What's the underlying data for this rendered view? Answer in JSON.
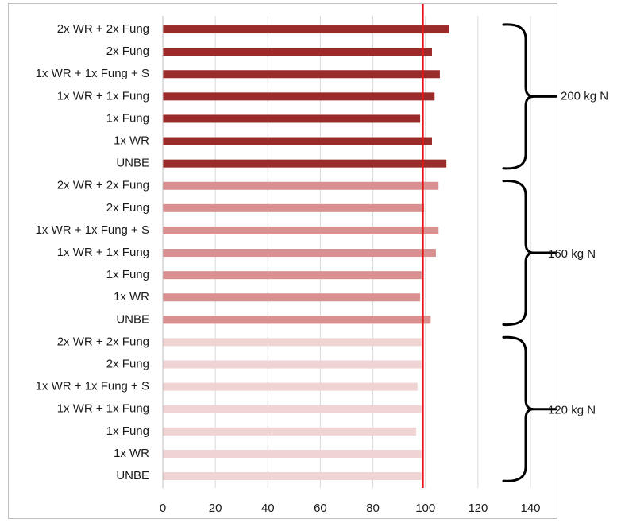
{
  "chart_data": {
    "type": "bar",
    "orientation": "horizontal",
    "xlim": [
      0,
      140
    ],
    "x_ticks": [
      0,
      20,
      40,
      60,
      80,
      100,
      120,
      140
    ],
    "grid": "vertical gridlines",
    "reference_line": {
      "value": 99,
      "color": "#e8141b"
    },
    "groups": [
      {
        "label": "200 kg N",
        "color": "#9b2b2b",
        "bars": [
          {
            "category": "2x WR + 2x Fung",
            "value": 109
          },
          {
            "category": "2x Fung",
            "value": 102.5
          },
          {
            "category": "1x WR + 1x Fung + S",
            "value": 105.5
          },
          {
            "category": "1x WR + 1x Fung",
            "value": 103.5
          },
          {
            "category": "1x Fung",
            "value": 98
          },
          {
            "category": "1x WR",
            "value": 102.5
          },
          {
            "category": "UNBE",
            "value": 108
          }
        ]
      },
      {
        "label": "160 kg N",
        "color": "#d89090",
        "bars": [
          {
            "category": "2x WR + 2x Fung",
            "value": 105
          },
          {
            "category": "2x Fung",
            "value": 99.5
          },
          {
            "category": "1x WR + 1x Fung + S",
            "value": 105
          },
          {
            "category": "1x WR + 1x Fung",
            "value": 104
          },
          {
            "category": "1x Fung",
            "value": 98.5
          },
          {
            "category": "1x WR",
            "value": 98
          },
          {
            "category": "UNBE",
            "value": 102
          }
        ]
      },
      {
        "label": "120 kg N",
        "color": "#f0d4d4",
        "bars": [
          {
            "category": "2x WR + 2x Fung",
            "value": 98.5
          },
          {
            "category": "2x Fung",
            "value": 98.5
          },
          {
            "category": "1x WR + 1x Fung + S",
            "value": 97
          },
          {
            "category": "1x WR + 1x Fung",
            "value": 98.5
          },
          {
            "category": "1x Fung",
            "value": 96.5
          },
          {
            "category": "1x WR",
            "value": 98.5
          },
          {
            "category": "UNBE",
            "value": 98.5
          }
        ]
      }
    ]
  }
}
